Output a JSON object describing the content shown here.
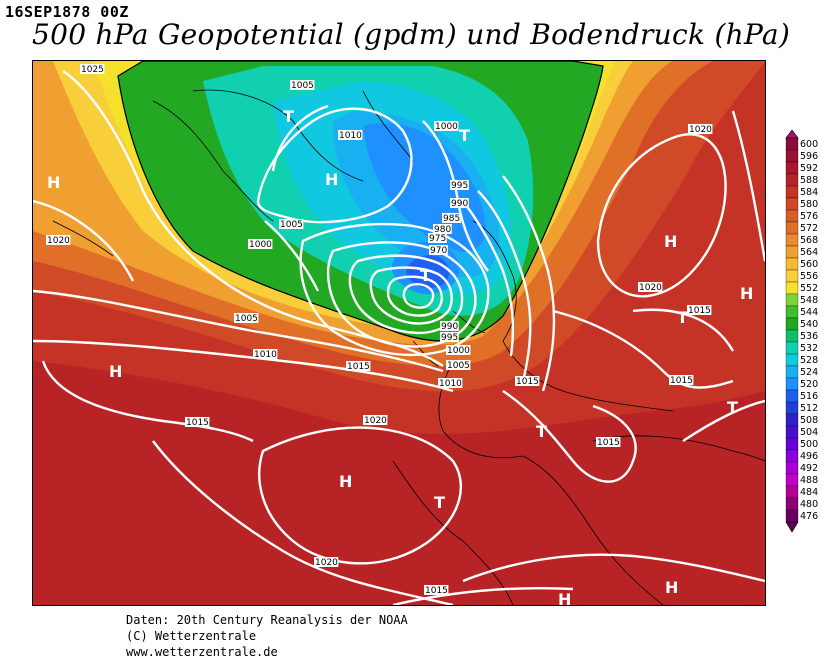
{
  "header": {
    "date": "16SEP1878 00Z",
    "title": "500 hPa Geopotential (gpdm) und Bodendruck (hPa)"
  },
  "credits": {
    "line1": "Daten: 20th Century Reanalysis der NOAA",
    "line2": "(C) Wetterzentrale",
    "line3": "www.wetterzentrale.de"
  },
  "colorbar": {
    "unit": "gpdm",
    "levels": [
      "600",
      "596",
      "592",
      "588",
      "584",
      "580",
      "576",
      "572",
      "568",
      "564",
      "560",
      "556",
      "552",
      "548",
      "544",
      "540",
      "536",
      "532",
      "528",
      "524",
      "520",
      "516",
      "512",
      "508",
      "504",
      "500",
      "496",
      "492",
      "488",
      "484",
      "480",
      "476"
    ],
    "colors": [
      "#8b0d3a",
      "#9a1230",
      "#a8182a",
      "#b82325",
      "#c43326",
      "#d04a28",
      "#d85c26",
      "#e07028",
      "#e98a2e",
      "#f0a030",
      "#f5b934",
      "#f8cf3a",
      "#f4e12c",
      "#7fd13a",
      "#3fbf2a",
      "#22a822",
      "#0fbf6a",
      "#10d0b0",
      "#10c8e0",
      "#18b0f0",
      "#1e90ff",
      "#2060f0",
      "#2040d8",
      "#3020c8",
      "#4a10c8",
      "#6a00d8",
      "#8a00e0",
      "#a800d8",
      "#c000c8",
      "#b40090",
      "#8e0078",
      "#6a005e"
    ]
  },
  "pressure_labels": [
    {
      "text": "1025",
      "id": "iso-1025-nw"
    },
    {
      "text": "1005",
      "id": "iso-1005-greenland"
    },
    {
      "text": "1010",
      "id": "iso-1010-greenland"
    },
    {
      "text": "1000",
      "id": "iso-1000-svalbard"
    },
    {
      "text": "995",
      "id": "iso-995-a"
    },
    {
      "text": "990",
      "id": "iso-990-a"
    },
    {
      "text": "985",
      "id": "iso-985"
    },
    {
      "text": "980",
      "id": "iso-980"
    },
    {
      "text": "975",
      "id": "iso-975"
    },
    {
      "text": "970",
      "id": "iso-970"
    },
    {
      "text": "1005",
      "id": "iso-1005-iceland"
    },
    {
      "text": "1000",
      "id": "iso-1000-iceland"
    },
    {
      "text": "1020",
      "id": "iso-1020-w"
    },
    {
      "text": "1005",
      "id": "iso-1005-atl"
    },
    {
      "text": "1010",
      "id": "iso-1010-atl"
    },
    {
      "text": "1015",
      "id": "iso-1015-atl"
    },
    {
      "text": "990",
      "id": "iso-990-b"
    },
    {
      "text": "995",
      "id": "iso-995-b"
    },
    {
      "text": "1000",
      "id": "iso-1000-b"
    },
    {
      "text": "1005",
      "id": "iso-1005-b"
    },
    {
      "text": "1010",
      "id": "iso-1010-b"
    },
    {
      "text": "1015",
      "id": "iso-1015-b"
    },
    {
      "text": "1015",
      "id": "iso-1015-sw"
    },
    {
      "text": "1020",
      "id": "iso-1020-azores"
    },
    {
      "text": "1020",
      "id": "iso-1020-russia"
    },
    {
      "text": "1020",
      "id": "iso-1020-east"
    },
    {
      "text": "1015",
      "id": "iso-1015-east"
    },
    {
      "text": "1015",
      "id": "iso-1015-se"
    },
    {
      "text": "1015",
      "id": "iso-1015-med"
    },
    {
      "text": "1020",
      "id": "iso-1020-s"
    },
    {
      "text": "1015",
      "id": "iso-1015-s"
    }
  ],
  "pressure_centers": [
    {
      "symbol": "H",
      "id": "high-canada"
    },
    {
      "symbol": "T",
      "id": "low-greenland-n"
    },
    {
      "symbol": "H",
      "id": "high-greenland"
    },
    {
      "symbol": "T",
      "id": "low-svalbard"
    },
    {
      "symbol": "T",
      "id": "low-norwegian-sea"
    },
    {
      "symbol": "H",
      "id": "high-atlantic"
    },
    {
      "symbol": "H",
      "id": "high-azores"
    },
    {
      "symbol": "T",
      "id": "low-iberia"
    },
    {
      "symbol": "T",
      "id": "low-alps"
    },
    {
      "symbol": "H",
      "id": "high-russia"
    },
    {
      "symbol": "H",
      "id": "high-east-edge"
    },
    {
      "symbol": "T",
      "id": "low-east"
    },
    {
      "symbol": "T",
      "id": "low-turkey"
    },
    {
      "symbol": "H",
      "id": "high-africa"
    },
    {
      "symbol": "H",
      "id": "high-sahara"
    }
  ]
}
